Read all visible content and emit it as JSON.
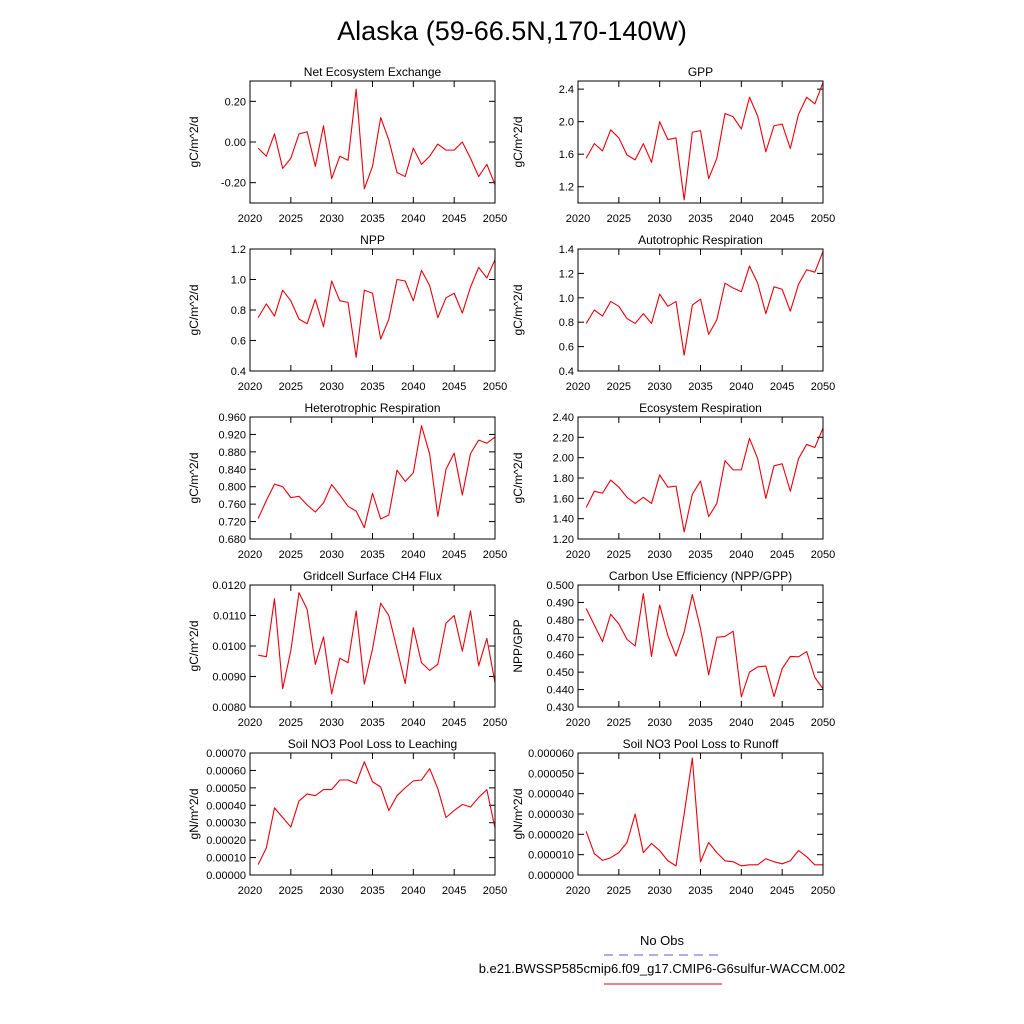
{
  "figure": {
    "title": "Alaska (59-66.5N,170-140W)",
    "legend": {
      "obs_label": "No Obs",
      "obs_color": "#5b5bd6",
      "model_label": "b.e21.BWSSP585cmip6.f09_g17.CMIP6-G6sulfur-WACCM.002",
      "model_color": "#e8000b"
    }
  },
  "chart_data": [
    {
      "type": "line",
      "title": "Net Ecosystem Exchange",
      "ylabel": "gC/m^2/d",
      "xlim": [
        2020,
        2050
      ],
      "ylim": [
        -0.3,
        0.3
      ],
      "yticks": [
        -0.2,
        0.0,
        0.2
      ],
      "ytick_labels": [
        "-0.20",
        "0.00",
        "0.20"
      ],
      "xticks": [
        2020,
        2025,
        2030,
        2035,
        2040,
        2045,
        2050
      ],
      "series": [
        {
          "color": "#e8000b",
          "x": [
            2021,
            2022,
            2023,
            2024,
            2025,
            2026,
            2027,
            2028,
            2029,
            2030,
            2031,
            2032,
            2033,
            2034,
            2035,
            2036,
            2037,
            2038,
            2039,
            2040,
            2041,
            2042,
            2043,
            2044,
            2045,
            2046,
            2047,
            2048,
            2049,
            2050
          ],
          "y": [
            -0.03,
            -0.07,
            0.04,
            -0.13,
            -0.08,
            0.04,
            0.05,
            -0.12,
            0.08,
            -0.18,
            -0.07,
            -0.09,
            0.26,
            -0.23,
            -0.12,
            0.12,
            0.01,
            -0.15,
            -0.17,
            -0.03,
            -0.11,
            -0.07,
            -0.01,
            -0.04,
            -0.04,
            0.0,
            -0.08,
            -0.17,
            -0.11,
            -0.21
          ]
        }
      ]
    },
    {
      "type": "line",
      "title": "GPP",
      "ylabel": "gC/m^2/d",
      "xlim": [
        2020,
        2050
      ],
      "ylim": [
        1.0,
        2.5
      ],
      "yticks": [
        1.2,
        1.6,
        2.0,
        2.4
      ],
      "ytick_labels": [
        "1.2",
        "1.6",
        "2.0",
        "2.4"
      ],
      "xticks": [
        2020,
        2025,
        2030,
        2035,
        2040,
        2045,
        2050
      ],
      "series": [
        {
          "color": "#e8000b",
          "x": [
            2021,
            2022,
            2023,
            2024,
            2025,
            2026,
            2027,
            2028,
            2029,
            2030,
            2031,
            2032,
            2033,
            2034,
            2035,
            2036,
            2037,
            2038,
            2039,
            2040,
            2041,
            2042,
            2043,
            2044,
            2045,
            2046,
            2047,
            2048,
            2049,
            2050
          ],
          "y": [
            1.55,
            1.73,
            1.64,
            1.9,
            1.8,
            1.59,
            1.53,
            1.73,
            1.5,
            2.0,
            1.78,
            1.8,
            1.04,
            1.87,
            1.89,
            1.3,
            1.55,
            2.1,
            2.06,
            1.91,
            2.3,
            2.07,
            1.63,
            1.95,
            1.97,
            1.67,
            2.09,
            2.3,
            2.22,
            2.48
          ]
        }
      ]
    },
    {
      "type": "line",
      "title": "NPP",
      "ylabel": "gC/m^2/d",
      "xlim": [
        2020,
        2050
      ],
      "ylim": [
        0.4,
        1.2
      ],
      "yticks": [
        0.4,
        0.6,
        0.8,
        1.0,
        1.2
      ],
      "ytick_labels": [
        "0.4",
        "0.6",
        "0.8",
        "1.0",
        "1.2"
      ],
      "xticks": [
        2020,
        2025,
        2030,
        2035,
        2040,
        2045,
        2050
      ],
      "series": [
        {
          "color": "#e8000b",
          "x": [
            2021,
            2022,
            2023,
            2024,
            2025,
            2026,
            2027,
            2028,
            2029,
            2030,
            2031,
            2032,
            2033,
            2034,
            2035,
            2036,
            2037,
            2038,
            2039,
            2040,
            2041,
            2042,
            2043,
            2044,
            2045,
            2046,
            2047,
            2048,
            2049,
            2050
          ],
          "y": [
            0.75,
            0.84,
            0.76,
            0.93,
            0.86,
            0.74,
            0.71,
            0.87,
            0.69,
            0.99,
            0.86,
            0.85,
            0.49,
            0.93,
            0.91,
            0.61,
            0.74,
            1.0,
            0.99,
            0.86,
            1.06,
            0.96,
            0.75,
            0.88,
            0.91,
            0.78,
            0.95,
            1.08,
            1.01,
            1.13
          ]
        }
      ]
    },
    {
      "type": "line",
      "title": "Autotrophic Respiration",
      "ylabel": "gC/m^2/d",
      "xlim": [
        2020,
        2050
      ],
      "ylim": [
        0.4,
        1.4
      ],
      "yticks": [
        0.4,
        0.6,
        0.8,
        1.0,
        1.2,
        1.4
      ],
      "ytick_labels": [
        "0.4",
        "0.6",
        "0.8",
        "1.0",
        "1.2",
        "1.4"
      ],
      "xticks": [
        2020,
        2025,
        2030,
        2035,
        2040,
        2045,
        2050
      ],
      "series": [
        {
          "color": "#e8000b",
          "x": [
            2021,
            2022,
            2023,
            2024,
            2025,
            2026,
            2027,
            2028,
            2029,
            2030,
            2031,
            2032,
            2033,
            2034,
            2035,
            2036,
            2037,
            2038,
            2039,
            2040,
            2041,
            2042,
            2043,
            2044,
            2045,
            2046,
            2047,
            2048,
            2049,
            2050
          ],
          "y": [
            0.79,
            0.9,
            0.85,
            0.97,
            0.93,
            0.83,
            0.79,
            0.87,
            0.79,
            1.03,
            0.93,
            0.97,
            0.53,
            0.94,
            0.99,
            0.7,
            0.82,
            1.12,
            1.08,
            1.05,
            1.26,
            1.12,
            0.87,
            1.09,
            1.07,
            0.89,
            1.11,
            1.23,
            1.21,
            1.38
          ]
        }
      ]
    },
    {
      "type": "line",
      "title": "Heterotrophic Respiration",
      "ylabel": "gC/m^2/d",
      "xlim": [
        2020,
        2050
      ],
      "ylim": [
        0.68,
        0.96
      ],
      "yticks": [
        0.68,
        0.72,
        0.76,
        0.8,
        0.84,
        0.88,
        0.92,
        0.96
      ],
      "ytick_labels": [
        "0.680",
        "0.720",
        "0.760",
        "0.800",
        "0.840",
        "0.880",
        "0.920",
        "0.960"
      ],
      "xticks": [
        2020,
        2025,
        2030,
        2035,
        2040,
        2045,
        2050
      ],
      "series": [
        {
          "color": "#e8000b",
          "x": [
            2021,
            2022,
            2023,
            2024,
            2025,
            2026,
            2027,
            2028,
            2029,
            2030,
            2031,
            2032,
            2033,
            2034,
            2035,
            2036,
            2037,
            2038,
            2039,
            2040,
            2041,
            2042,
            2043,
            2044,
            2045,
            2046,
            2047,
            2048,
            2049,
            2050
          ],
          "y": [
            0.727,
            0.768,
            0.806,
            0.8,
            0.775,
            0.778,
            0.758,
            0.742,
            0.763,
            0.805,
            0.781,
            0.755,
            0.744,
            0.706,
            0.785,
            0.726,
            0.735,
            0.838,
            0.812,
            0.832,
            0.94,
            0.875,
            0.732,
            0.84,
            0.877,
            0.781,
            0.876,
            0.907,
            0.9,
            0.914
          ]
        }
      ]
    },
    {
      "type": "line",
      "title": "Ecosystem Respiration",
      "ylabel": "gC/m^2/d",
      "xlim": [
        2020,
        2050
      ],
      "ylim": [
        1.2,
        2.4
      ],
      "yticks": [
        1.2,
        1.4,
        1.6,
        1.8,
        2.0,
        2.2,
        2.4
      ],
      "ytick_labels": [
        "1.20",
        "1.40",
        "1.60",
        "1.80",
        "2.00",
        "2.20",
        "2.40"
      ],
      "xticks": [
        2020,
        2025,
        2030,
        2035,
        2040,
        2045,
        2050
      ],
      "series": [
        {
          "color": "#e8000b",
          "x": [
            2021,
            2022,
            2023,
            2024,
            2025,
            2026,
            2027,
            2028,
            2029,
            2030,
            2031,
            2032,
            2033,
            2034,
            2035,
            2036,
            2037,
            2038,
            2039,
            2040,
            2041,
            2042,
            2043,
            2044,
            2045,
            2046,
            2047,
            2048,
            2049,
            2050
          ],
          "y": [
            1.51,
            1.67,
            1.65,
            1.78,
            1.71,
            1.61,
            1.55,
            1.61,
            1.55,
            1.83,
            1.71,
            1.72,
            1.27,
            1.64,
            1.77,
            1.42,
            1.55,
            1.97,
            1.88,
            1.88,
            2.19,
            1.99,
            1.6,
            1.92,
            1.94,
            1.67,
            1.99,
            2.13,
            2.1,
            2.29
          ]
        }
      ]
    },
    {
      "type": "line",
      "title": "Gridcell Surface CH4 Flux",
      "ylabel": "gC/m^2/d",
      "xlim": [
        2020,
        2050
      ],
      "ylim": [
        0.008,
        0.012
      ],
      "yticks": [
        0.008,
        0.009,
        0.01,
        0.011,
        0.012
      ],
      "ytick_labels": [
        "0.0080",
        "0.0090",
        "0.0100",
        "0.0110",
        "0.0120"
      ],
      "xticks": [
        2020,
        2025,
        2030,
        2035,
        2040,
        2045,
        2050
      ],
      "series": [
        {
          "color": "#e8000b",
          "x": [
            2021,
            2022,
            2023,
            2024,
            2025,
            2026,
            2027,
            2028,
            2029,
            2030,
            2031,
            2032,
            2033,
            2034,
            2035,
            2036,
            2037,
            2038,
            2039,
            2040,
            2041,
            2042,
            2043,
            2044,
            2045,
            2046,
            2047,
            2048,
            2049,
            2050
          ],
          "y": [
            0.0097,
            0.00965,
            0.01155,
            0.0086,
            0.00985,
            0.01175,
            0.0112,
            0.0094,
            0.0103,
            0.00843,
            0.0096,
            0.00945,
            0.01115,
            0.00875,
            0.0099,
            0.0114,
            0.011,
            0.0099,
            0.00877,
            0.0106,
            0.00945,
            0.0092,
            0.0094,
            0.01075,
            0.011,
            0.00983,
            0.01115,
            0.00935,
            0.01025,
            0.0088
          ]
        }
      ]
    },
    {
      "type": "line",
      "title": "Carbon Use Efficiency (NPP/GPP)",
      "ylabel": "NPP/GPP",
      "xlim": [
        2020,
        2050
      ],
      "ylim": [
        0.43,
        0.5
      ],
      "yticks": [
        0.43,
        0.44,
        0.45,
        0.46,
        0.47,
        0.48,
        0.49,
        0.5
      ],
      "ytick_labels": [
        "0.430",
        "0.440",
        "0.450",
        "0.460",
        "0.470",
        "0.480",
        "0.490",
        "0.500"
      ],
      "xticks": [
        2020,
        2025,
        2030,
        2035,
        2040,
        2045,
        2050
      ],
      "series": [
        {
          "color": "#e8000b",
          "x": [
            2021,
            2022,
            2023,
            2024,
            2025,
            2026,
            2027,
            2028,
            2029,
            2030,
            2031,
            2032,
            2033,
            2034,
            2035,
            2036,
            2037,
            2038,
            2039,
            2040,
            2041,
            2042,
            2043,
            2044,
            2045,
            2046,
            2047,
            2048,
            2049,
            2050
          ],
          "y": [
            0.4865,
            0.477,
            0.4675,
            0.4832,
            0.4777,
            0.4688,
            0.465,
            0.495,
            0.459,
            0.4885,
            0.471,
            0.4592,
            0.473,
            0.4945,
            0.475,
            0.4485,
            0.47,
            0.4705,
            0.4735,
            0.4358,
            0.45,
            0.453,
            0.4535,
            0.436,
            0.452,
            0.459,
            0.4588,
            0.4618,
            0.447,
            0.4405
          ]
        }
      ]
    },
    {
      "type": "line",
      "title": "Soil NO3 Pool Loss to Leaching",
      "ylabel": "gN/m^2/d",
      "xlim": [
        2020,
        2050
      ],
      "ylim": [
        0.0,
        0.0007
      ],
      "yticks": [
        0.0,
        0.0001,
        0.0002,
        0.0003,
        0.0004,
        0.0005,
        0.0006,
        0.0007
      ],
      "ytick_labels": [
        "0.00000",
        "0.00010",
        "0.00020",
        "0.00030",
        "0.00040",
        "0.00050",
        "0.00060",
        "0.00070"
      ],
      "xticks": [
        2020,
        2025,
        2030,
        2035,
        2040,
        2045,
        2050
      ],
      "series": [
        {
          "color": "#e8000b",
          "x": [
            2021,
            2022,
            2023,
            2024,
            2025,
            2026,
            2027,
            2028,
            2029,
            2030,
            2031,
            2032,
            2033,
            2034,
            2035,
            2036,
            2037,
            2038,
            2039,
            2040,
            2041,
            2042,
            2043,
            2044,
            2045,
            2046,
            2047,
            2048,
            2049,
            2050
          ],
          "y": [
            6e-05,
            0.000155,
            0.000385,
            0.00033,
            0.000275,
            0.000425,
            0.000465,
            0.000455,
            0.00049,
            0.00049,
            0.000545,
            0.000545,
            0.000525,
            0.00065,
            0.000535,
            0.000505,
            0.00037,
            0.000455,
            0.0005,
            0.00054,
            0.000545,
            0.00061,
            0.000495,
            0.00033,
            0.00037,
            0.000405,
            0.00039,
            0.000445,
            0.00049,
            0.00027
          ]
        }
      ]
    },
    {
      "type": "line",
      "title": "Soil NO3 Pool Loss to Runoff",
      "ylabel": "gN/m^2/d",
      "xlim": [
        2020,
        2050
      ],
      "ylim": [
        0.0,
        6e-05
      ],
      "yticks": [
        0.0,
        1e-05,
        2e-05,
        3e-05,
        4e-05,
        5e-05,
        6e-05
      ],
      "ytick_labels": [
        "0.000000",
        "0.000010",
        "0.000020",
        "0.000030",
        "0.000040",
        "0.000050",
        "0.000060"
      ],
      "xticks": [
        2020,
        2025,
        2030,
        2035,
        2040,
        2045,
        2050
      ],
      "series": [
        {
          "color": "#e8000b",
          "x": [
            2021,
            2022,
            2023,
            2024,
            2025,
            2026,
            2027,
            2028,
            2029,
            2030,
            2031,
            2032,
            2033,
            2034,
            2035,
            2036,
            2037,
            2038,
            2039,
            2040,
            2041,
            2042,
            2043,
            2044,
            2045,
            2046,
            2047,
            2048,
            2049,
            2050
          ],
          "y": [
            2.15e-05,
            1.05e-05,
            7.2e-06,
            8.5e-06,
            1.1e-05,
            1.6e-05,
            3e-05,
            1.1e-05,
            1.55e-05,
            1.2e-05,
            7e-06,
            4.5e-06,
            3e-05,
            5.75e-05,
            6.5e-06,
            1.6e-05,
            1.1e-05,
            7e-06,
            6.5e-06,
            4.5e-06,
            5e-06,
            5e-06,
            8e-06,
            6.5e-06,
            5.5e-06,
            7e-06,
            1.2e-05,
            9e-06,
            5e-06,
            5e-06
          ]
        }
      ]
    }
  ]
}
